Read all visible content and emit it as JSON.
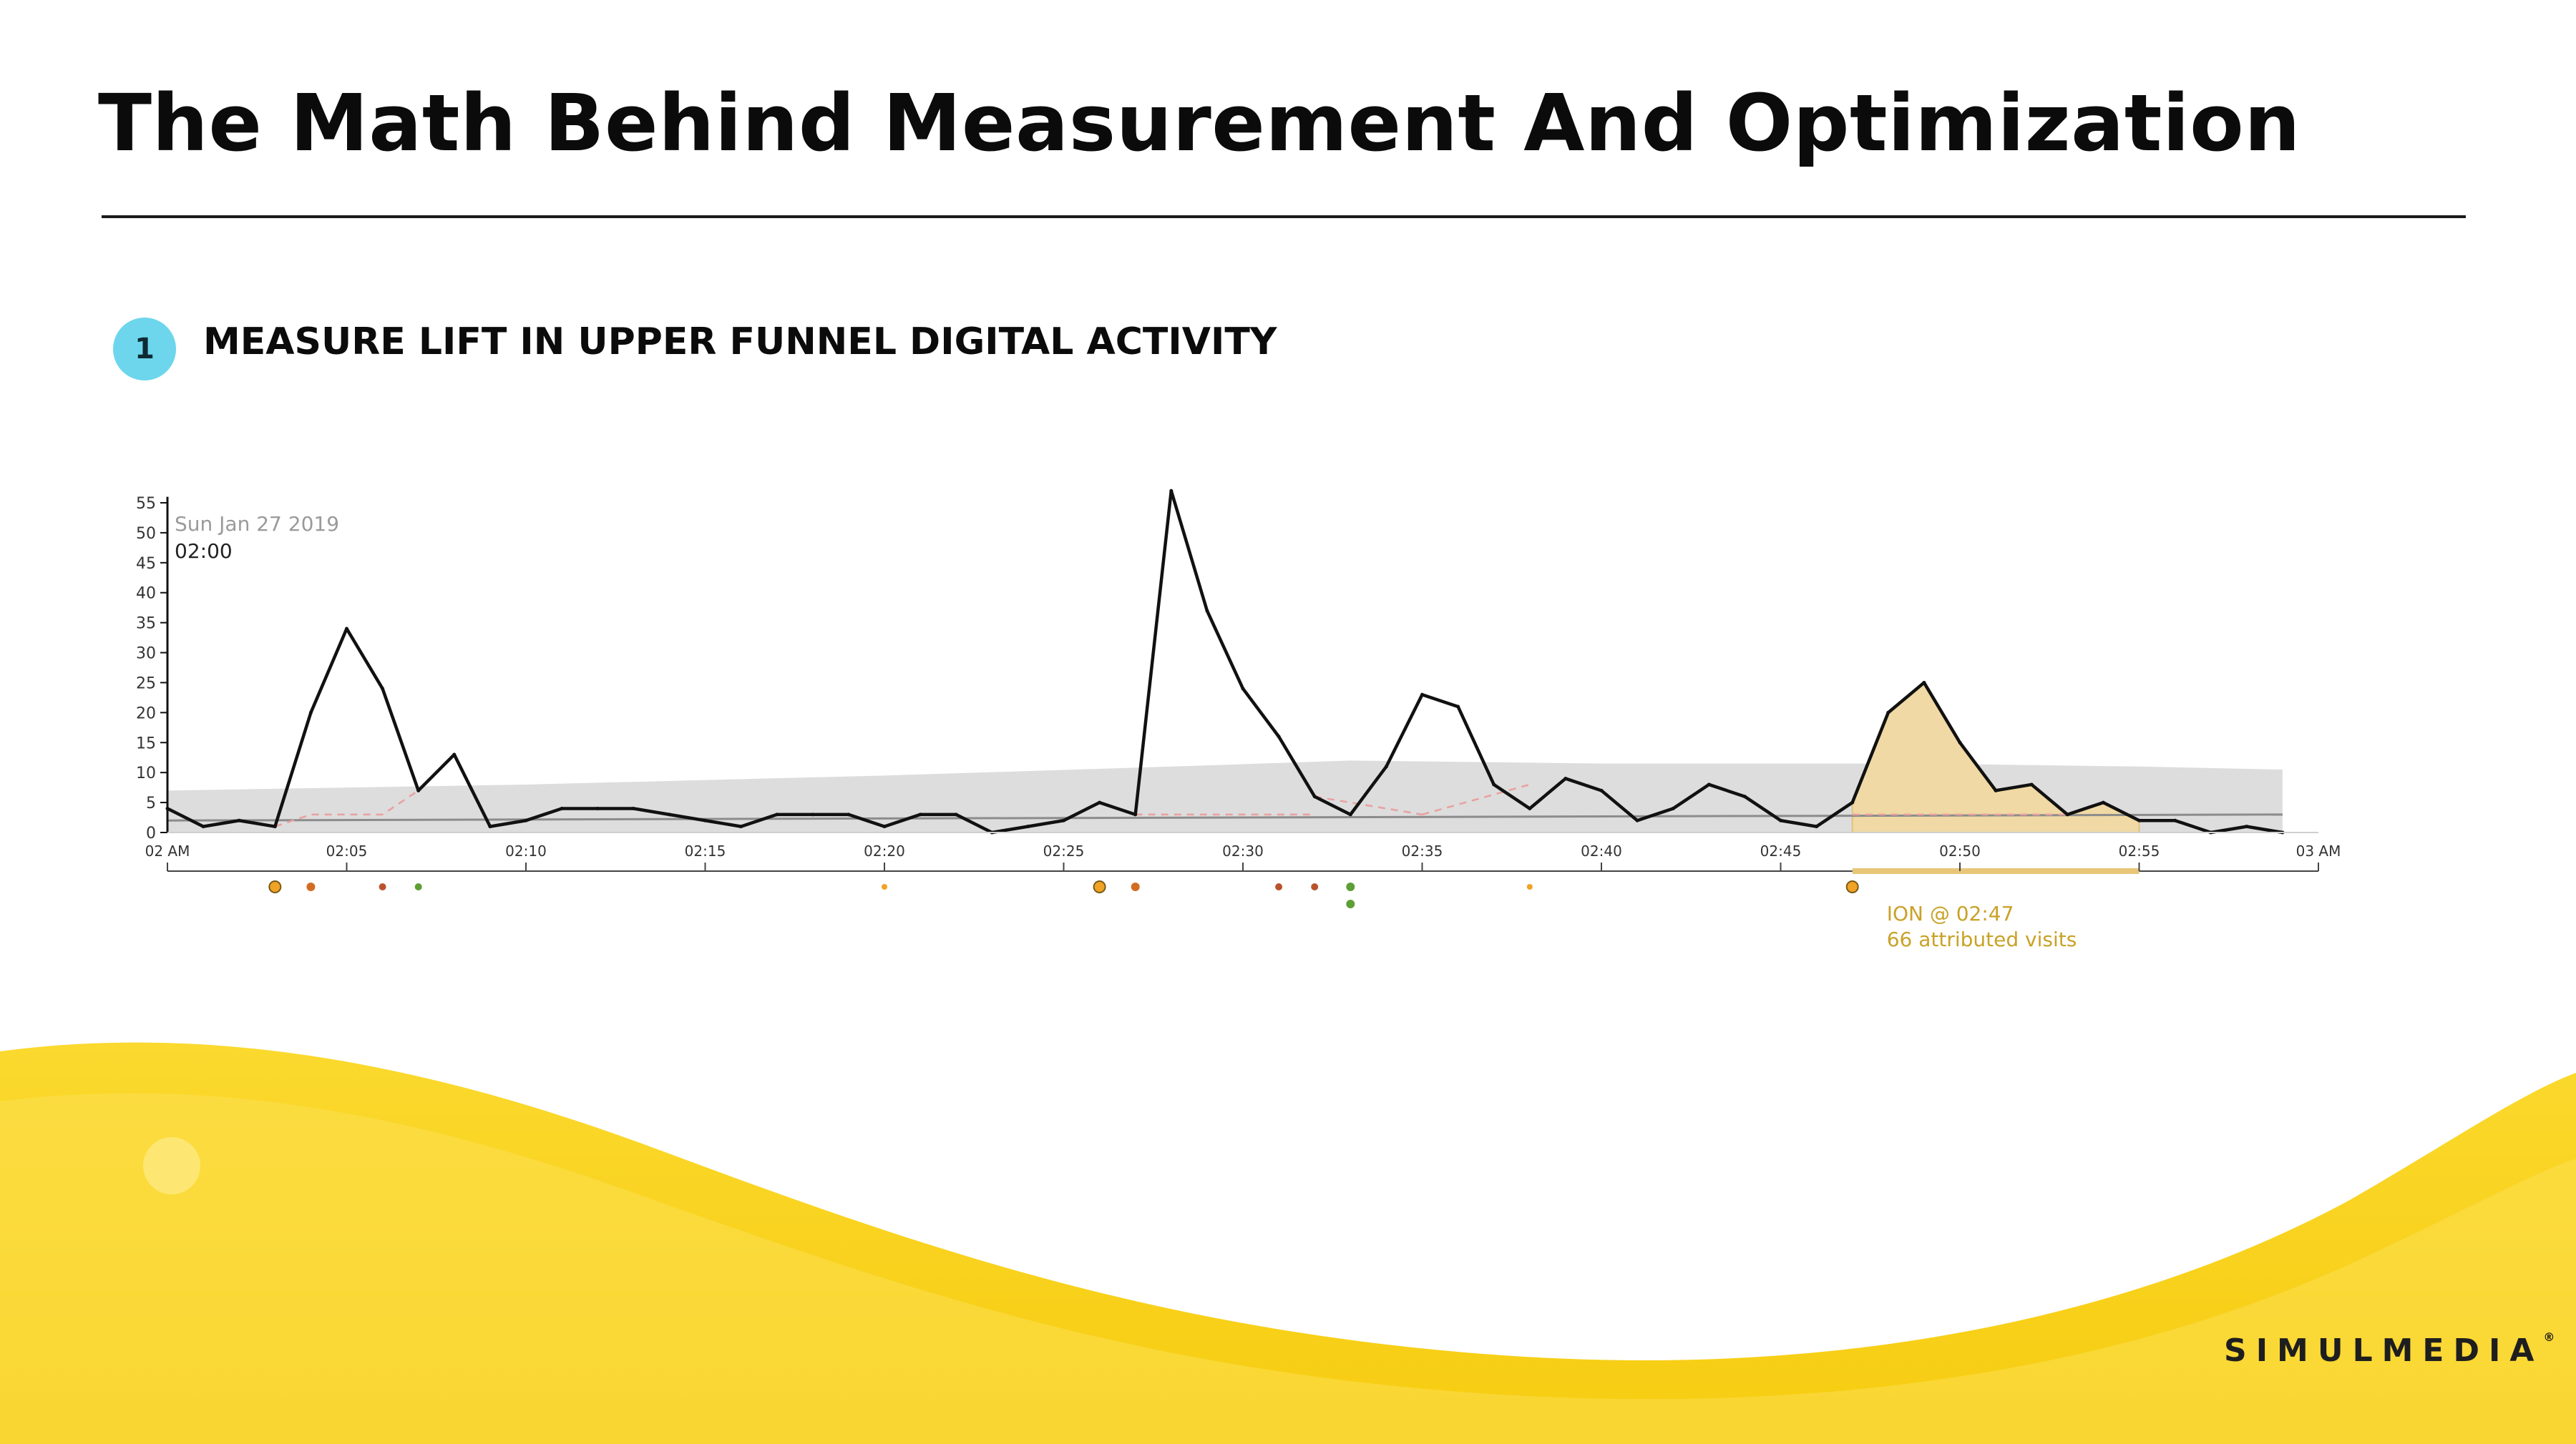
{
  "title": "The Math Behind Measurement And Optimization",
  "section": {
    "step_number": "1",
    "heading": "MEASURE LIFT IN UPPER FUNNEL DIGITAL ACTIVITY"
  },
  "brand": {
    "name": "SIMULMEDIA",
    "mark": "®"
  },
  "colors": {
    "line": "#111111",
    "band": "#d9d9d9",
    "baseline": "#8c8c8c",
    "dashed": "#e9a0a0",
    "highlight_fill": "#f0d9a4",
    "highlight_text": "#c9a227",
    "badge": "#6dd6ec",
    "wave": "#f7d117",
    "dot_orange": "#f0a325",
    "dot_darkorange": "#d26c23",
    "dot_red": "#b9532d",
    "dot_green": "#5e9e35"
  },
  "chart_data": {
    "type": "line",
    "date_label": "Sun Jan 27 2019",
    "time_label": "02:00",
    "ylim": [
      0,
      55
    ],
    "y_ticks": [
      0,
      5,
      10,
      15,
      20,
      25,
      30,
      35,
      40,
      45,
      50,
      55
    ],
    "xlim": [
      "02:00",
      "03:00"
    ],
    "x_ticks": [
      "02 AM",
      "02:05",
      "02:10",
      "02:15",
      "02:20",
      "02:25",
      "02:30",
      "02:35",
      "02:40",
      "02:45",
      "02:50",
      "02:55",
      "03 AM"
    ],
    "x_tick_minutes": [
      0,
      5,
      10,
      15,
      20,
      25,
      30,
      35,
      40,
      45,
      50,
      55,
      60
    ],
    "series": [
      {
        "x": [
          0,
          1,
          2,
          3,
          4,
          5,
          6,
          7,
          8,
          9,
          10,
          11,
          12,
          13,
          14,
          15,
          16,
          17,
          18,
          19,
          20,
          21,
          22,
          23,
          24,
          25,
          26,
          27,
          28,
          29,
          30,
          31,
          32,
          33,
          34,
          35,
          36,
          37,
          38,
          39,
          40,
          41,
          42,
          43,
          44,
          45,
          46,
          47,
          48,
          49,
          50,
          51,
          52,
          53,
          54,
          55,
          56,
          57,
          58,
          59
        ],
        "values": [
          4,
          1,
          2,
          1,
          20,
          34,
          24,
          7,
          13,
          1,
          2,
          4,
          4,
          4,
          3,
          2,
          1,
          3,
          3,
          3,
          1,
          3,
          3,
          0,
          1,
          2,
          5,
          3,
          57,
          37,
          24,
          16,
          6,
          3,
          11,
          23,
          21,
          8,
          4,
          9,
          7,
          2,
          4,
          8,
          6,
          2,
          1,
          5,
          20,
          25,
          15,
          7,
          8,
          3,
          5,
          2,
          2,
          0,
          1,
          0
        ]
      }
    ],
    "expected_band": {
      "x": [
        0,
        10,
        20,
        28,
        33,
        40,
        49,
        55,
        59
      ],
      "lower": [
        0,
        0,
        0,
        0,
        0,
        0,
        0,
        0,
        0
      ],
      "upper": [
        7,
        8,
        9.5,
        11,
        12,
        11.5,
        11.5,
        11,
        10.5
      ]
    },
    "baseline": {
      "x": [
        0,
        59
      ],
      "values": [
        2,
        3
      ]
    },
    "expected_without_ad": [
      {
        "x": [
          3,
          4,
          6,
          7
        ],
        "values": [
          1,
          3,
          3,
          7
        ]
      },
      {
        "x": [
          27,
          32
        ],
        "values": [
          3,
          3
        ]
      },
      {
        "x": [
          32,
          35
        ],
        "values": [
          6,
          3
        ]
      },
      {
        "x": [
          35,
          38
        ],
        "values": [
          3,
          8
        ]
      },
      {
        "x": [
          47,
          50,
          53
        ],
        "values": [
          3,
          3,
          3
        ]
      }
    ],
    "highlight": {
      "start": 47,
      "end": 55,
      "label": "ION @ 02:47",
      "detail": "66 attributed visits"
    },
    "airings": [
      {
        "x": 3,
        "color": "dot_orange",
        "size": "large"
      },
      {
        "x": 4,
        "color": "dot_darkorange",
        "size": "medium"
      },
      {
        "x": 6,
        "color": "dot_red",
        "size": "small"
      },
      {
        "x": 7,
        "color": "dot_green",
        "size": "small"
      },
      {
        "x": 20,
        "color": "dot_orange",
        "size": "tiny"
      },
      {
        "x": 26,
        "color": "dot_orange",
        "size": "large"
      },
      {
        "x": 27,
        "color": "dot_darkorange",
        "size": "medium"
      },
      {
        "x": 31,
        "color": "dot_red",
        "size": "small"
      },
      {
        "x": 32,
        "color": "dot_red",
        "size": "small"
      },
      {
        "x": 33,
        "color": "dot_green",
        "size": "medium"
      },
      {
        "x": 33,
        "color": "dot_green",
        "size": "medium",
        "row": 2
      },
      {
        "x": 38,
        "color": "dot_orange",
        "size": "tiny"
      },
      {
        "x": 47,
        "color": "dot_orange",
        "size": "large"
      }
    ]
  }
}
